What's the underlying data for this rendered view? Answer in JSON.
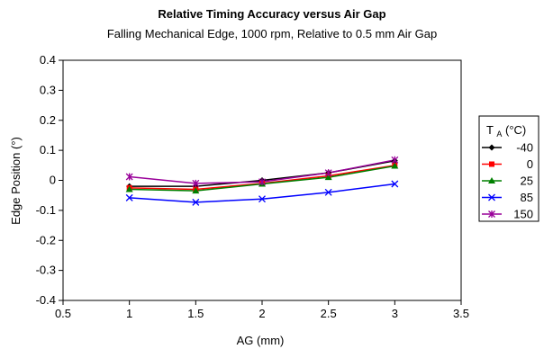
{
  "chart_data": {
    "type": "line",
    "title": "Relative Timing Accuracy versus Air Gap",
    "subtitle": "Falling Mechanical Edge, 1000 rpm, Relative to 0.5 mm Air Gap",
    "xlabel": "AG (mm)",
    "ylabel": "Edge Position (°)",
    "xlim": [
      0.5,
      3.5
    ],
    "ylim": [
      -0.4,
      0.4
    ],
    "xticks": [
      "0.5",
      "1",
      "1.5",
      "2",
      "2.5",
      "3",
      "3.5"
    ],
    "yticks": [
      "-0.4",
      "-0.3",
      "-0.2",
      "-0.1",
      "0",
      "0.1",
      "0.2",
      "0.3",
      "0.4"
    ],
    "grid": false,
    "legend_title_main": "T",
    "legend_title_sub": "A",
    "legend_title_unit": " (°C)",
    "legend_position": "right",
    "x": [
      1,
      1.5,
      2,
      2.5,
      3
    ],
    "series": [
      {
        "name": "-40",
        "values": [
          -0.02,
          -0.02,
          0.0,
          0.025,
          0.065
        ],
        "color": "#000000",
        "marker": "diamond"
      },
      {
        "name": "0",
        "values": [
          -0.025,
          -0.03,
          -0.01,
          0.015,
          0.05
        ],
        "color": "#ff0000",
        "marker": "square"
      },
      {
        "name": "25",
        "values": [
          -0.03,
          -0.035,
          -0.012,
          0.01,
          0.048
        ],
        "color": "#008000",
        "marker": "triangle"
      },
      {
        "name": "85",
        "values": [
          -0.058,
          -0.073,
          -0.062,
          -0.04,
          -0.012
        ],
        "color": "#0000ff",
        "marker": "x"
      },
      {
        "name": "150",
        "values": [
          0.012,
          -0.01,
          -0.005,
          0.025,
          0.068
        ],
        "color": "#990099",
        "marker": "star"
      }
    ]
  }
}
